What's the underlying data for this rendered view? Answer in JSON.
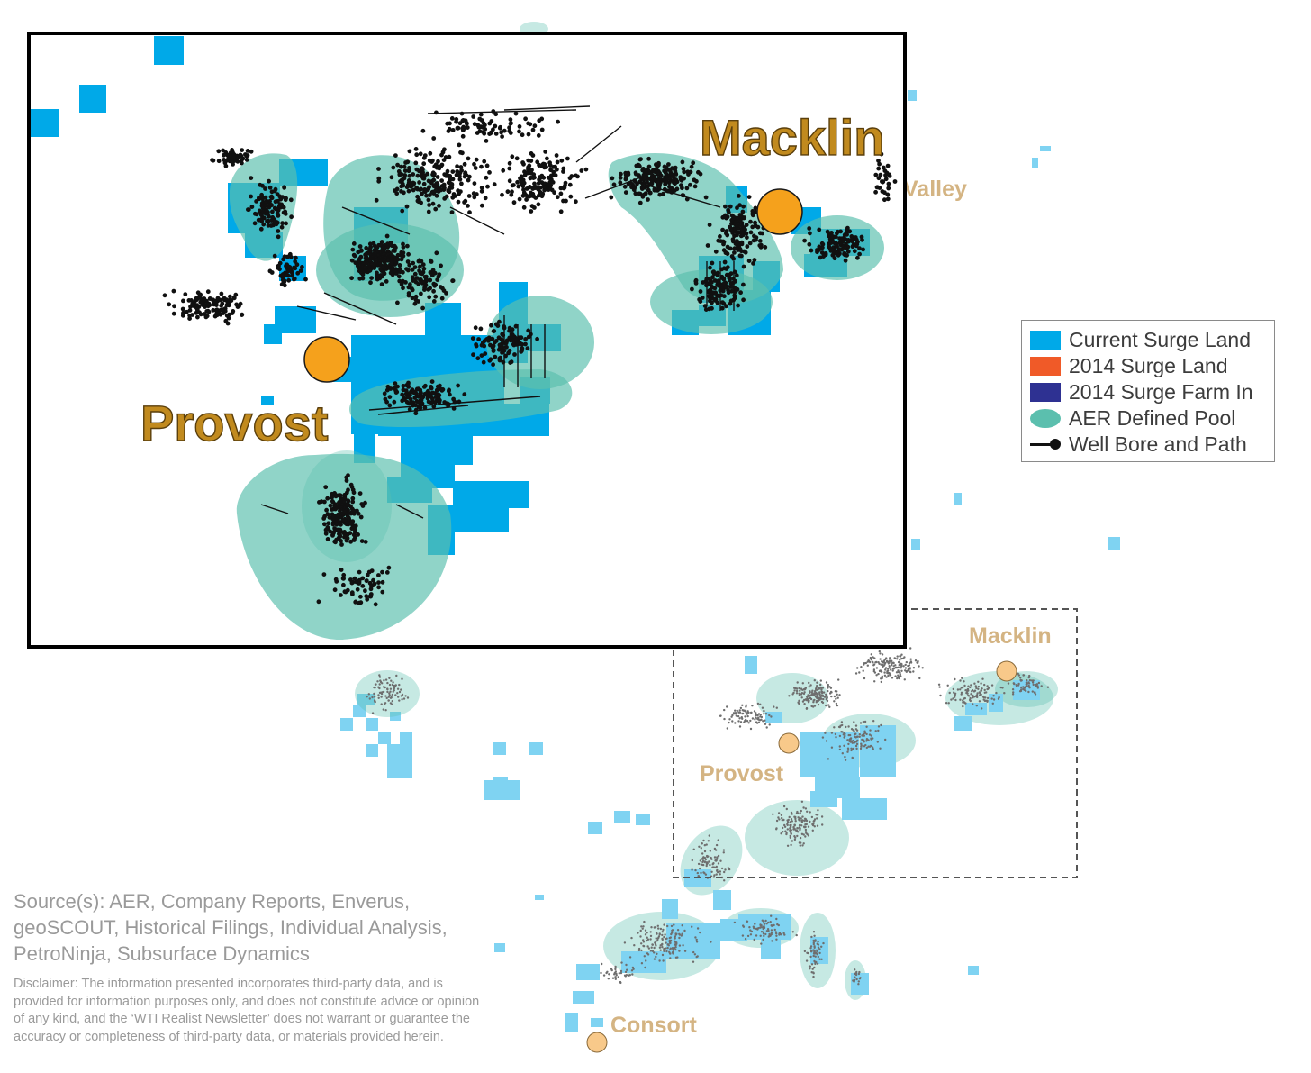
{
  "inset_labels": {
    "macklin": "Macklin",
    "provost": "Provost"
  },
  "overview_labels": {
    "valley_partial": "Valley",
    "macklin": "Macklin",
    "provost": "Provost",
    "consort": "Consort"
  },
  "legend": {
    "items": [
      {
        "label": "Current Surge Land",
        "color": "#00a9e8"
      },
      {
        "label": "2014 Surge Land",
        "color": "#f05a28"
      },
      {
        "label": "2014 Surge Farm In",
        "color": "#2e3192"
      },
      {
        "label": "AER Defined Pool",
        "color": "#5bbfae"
      },
      {
        "label": "Well Bore and Path",
        "color": "#111111"
      }
    ]
  },
  "source_text": "Source(s): AER, Company Reports, Enverus, geoSCOUT, Historical Filings, Individual Analysis, PetroNinja, Subsurface Dynamics",
  "disclaimer_text": "Disclaimer: The information presented incorporates third-party data, and is provided for information purposes only, and does not constitute advice or opinion of any kind, and the ‘WTI Realist Newsletter’ does not warrant or guarantee the accuracy or completeness of third-party data, or materials provided herein.",
  "colors": {
    "land": "#00a9e8",
    "land_light": "#7fd3f2",
    "pool": "#5bbfae",
    "town_dot": "#f5a11c",
    "town_dot_light": "#f8c98a",
    "inset_label": "#c18a1e",
    "overview_label": "#d4b483",
    "wells_overview": "#6e6e6e"
  }
}
